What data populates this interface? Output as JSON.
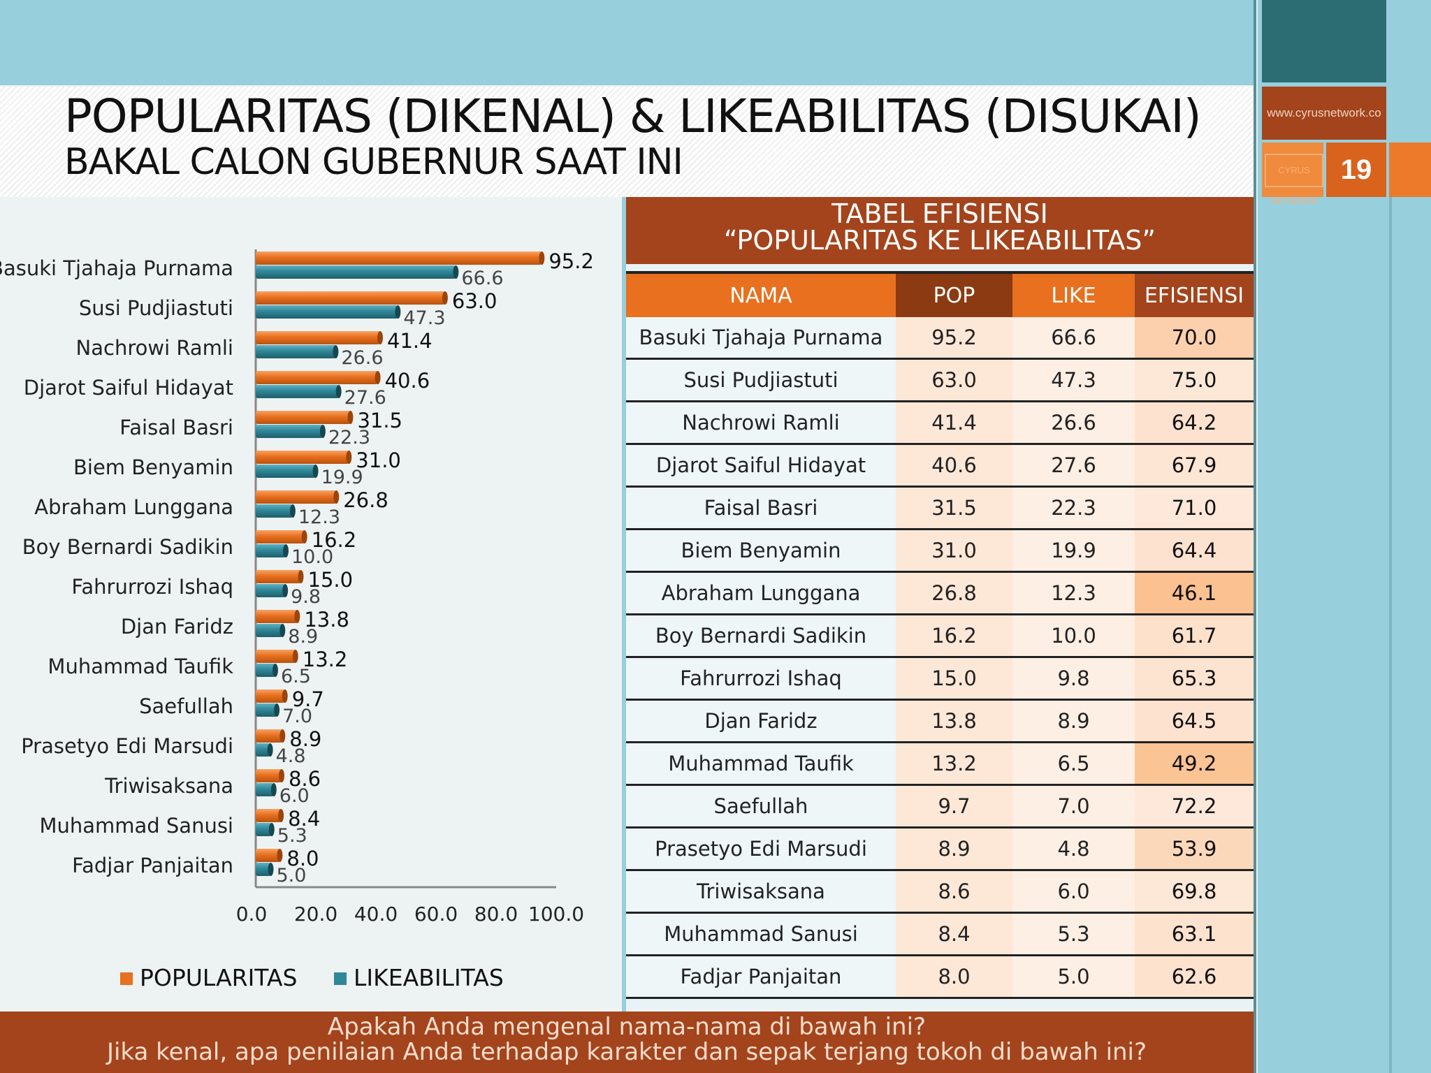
{
  "header": {
    "title": "POPULARITAS (DIKENAL) & LIKEABILITAS (DISUKAI)",
    "subtitle": "BAKAL CALON GUBERNUR SAAT INI"
  },
  "brand": {
    "url": "www.cyrusnetwork.co",
    "logo_text": "CYRUS NETWORK",
    "page_number": "19"
  },
  "colors": {
    "popularitas": "#e8701e",
    "likeabilitas": "#2f8798",
    "banner_brown": "#a3441c",
    "header_orange": "#e8701e",
    "pop_header": "#8b3a12",
    "light_blue": "#97cfdc",
    "eff_scale_light": "#fdece0",
    "eff_scale_dark": "#fbbf8d"
  },
  "chart_data": {
    "type": "bar",
    "orientation": "horizontal",
    "categories": [
      "Basuki Tjahaja Purnama",
      "Susi Pudjiastuti",
      "Nachrowi Ramli",
      "Djarot Saiful Hidayat",
      "Faisal Basri",
      "Biem Benyamin",
      "Abraham Lunggana",
      "Boy Bernardi Sadikin",
      "Fahrurrozi Ishaq",
      "Djan Faridz",
      "Muhammad Taufik",
      "Saefullah",
      "Prasetyo Edi Marsudi",
      "Triwisaksana",
      "Muhammad Sanusi",
      "Fadjar Panjaitan"
    ],
    "series": [
      {
        "name": "POPULARITAS",
        "values": [
          95.2,
          63.0,
          41.4,
          40.6,
          31.5,
          31.0,
          26.8,
          16.2,
          15.0,
          13.8,
          13.2,
          9.7,
          8.9,
          8.6,
          8.4,
          8.0
        ]
      },
      {
        "name": "LIKEABILITAS",
        "values": [
          66.6,
          47.3,
          26.6,
          27.6,
          22.3,
          19.9,
          12.3,
          10.0,
          9.8,
          8.9,
          6.5,
          7.0,
          4.8,
          6.0,
          5.3,
          5.0
        ]
      }
    ],
    "xlim": [
      0,
      100
    ],
    "xticks": [
      "0.0",
      "20.0",
      "40.0",
      "60.0",
      "80.0",
      "100.0"
    ],
    "legend_position": "bottom",
    "grid": false
  },
  "table": {
    "title_line1": "TABEL EFISIENSI",
    "title_line2": "“POPULARITAS KE LIKEABILITAS”",
    "headers": [
      "NAMA",
      "POP",
      "LIKE",
      "EFISIENSI"
    ],
    "rows": [
      {
        "nama": "Basuki Tjahaja Purnama",
        "pop": "95.2",
        "like": "66.6",
        "eff": "70.0",
        "heat": 0.62
      },
      {
        "nama": "Susi Pudjiastuti",
        "pop": "63.0",
        "like": "47.3",
        "eff": "75.0",
        "heat": 0.1
      },
      {
        "nama": "Nachrowi Ramli",
        "pop": "41.4",
        "like": "26.6",
        "eff": "64.2",
        "heat": 0.2
      },
      {
        "nama": "Djarot Saiful Hidayat",
        "pop": "40.6",
        "like": "27.6",
        "eff": "67.9",
        "heat": 0.14
      },
      {
        "nama": "Faisal Basri",
        "pop": "31.5",
        "like": "22.3",
        "eff": "71.0",
        "heat": 0.08
      },
      {
        "nama": "Biem Benyamin",
        "pop": "31.0",
        "like": "19.9",
        "eff": "64.4",
        "heat": 0.2
      },
      {
        "nama": "Abraham Lunggana",
        "pop": "26.8",
        "like": "12.3",
        "eff": "46.1",
        "heat": 0.95
      },
      {
        "nama": "Boy Bernardi Sadikin",
        "pop": "16.2",
        "like": "10.0",
        "eff": "61.7",
        "heat": 0.25
      },
      {
        "nama": "Fahrurrozi Ishaq",
        "pop": "15.0",
        "like": "9.8",
        "eff": "65.3",
        "heat": 0.18
      },
      {
        "nama": "Djan Faridz",
        "pop": "13.8",
        "like": "8.9",
        "eff": "64.5",
        "heat": 0.2
      },
      {
        "nama": "Muhammad Taufik",
        "pop": "13.2",
        "like": "6.5",
        "eff": "49.2",
        "heat": 0.9
      },
      {
        "nama": "Saefullah",
        "pop": "9.7",
        "like": "7.0",
        "eff": "72.2",
        "heat": 0.08
      },
      {
        "nama": "Prasetyo Edi Marsudi",
        "pop": "8.9",
        "like": "4.8",
        "eff": "53.9",
        "heat": 0.45
      },
      {
        "nama": "Triwisaksana",
        "pop": "8.6",
        "like": "6.0",
        "eff": "69.8",
        "heat": 0.12
      },
      {
        "nama": "Muhammad Sanusi",
        "pop": "8.4",
        "like": "5.3",
        "eff": "63.1",
        "heat": 0.22
      },
      {
        "nama": "Fadjar Panjaitan",
        "pop": "8.0",
        "like": "5.0",
        "eff": "62.6",
        "heat": 0.23
      }
    ]
  },
  "footer": {
    "question1": "Apakah Anda mengenal nama-nama di bawah ini?",
    "question2": "Jika kenal, apa penilaian Anda terhadap karakter dan sepak terjang tokoh di bawah ini?"
  }
}
